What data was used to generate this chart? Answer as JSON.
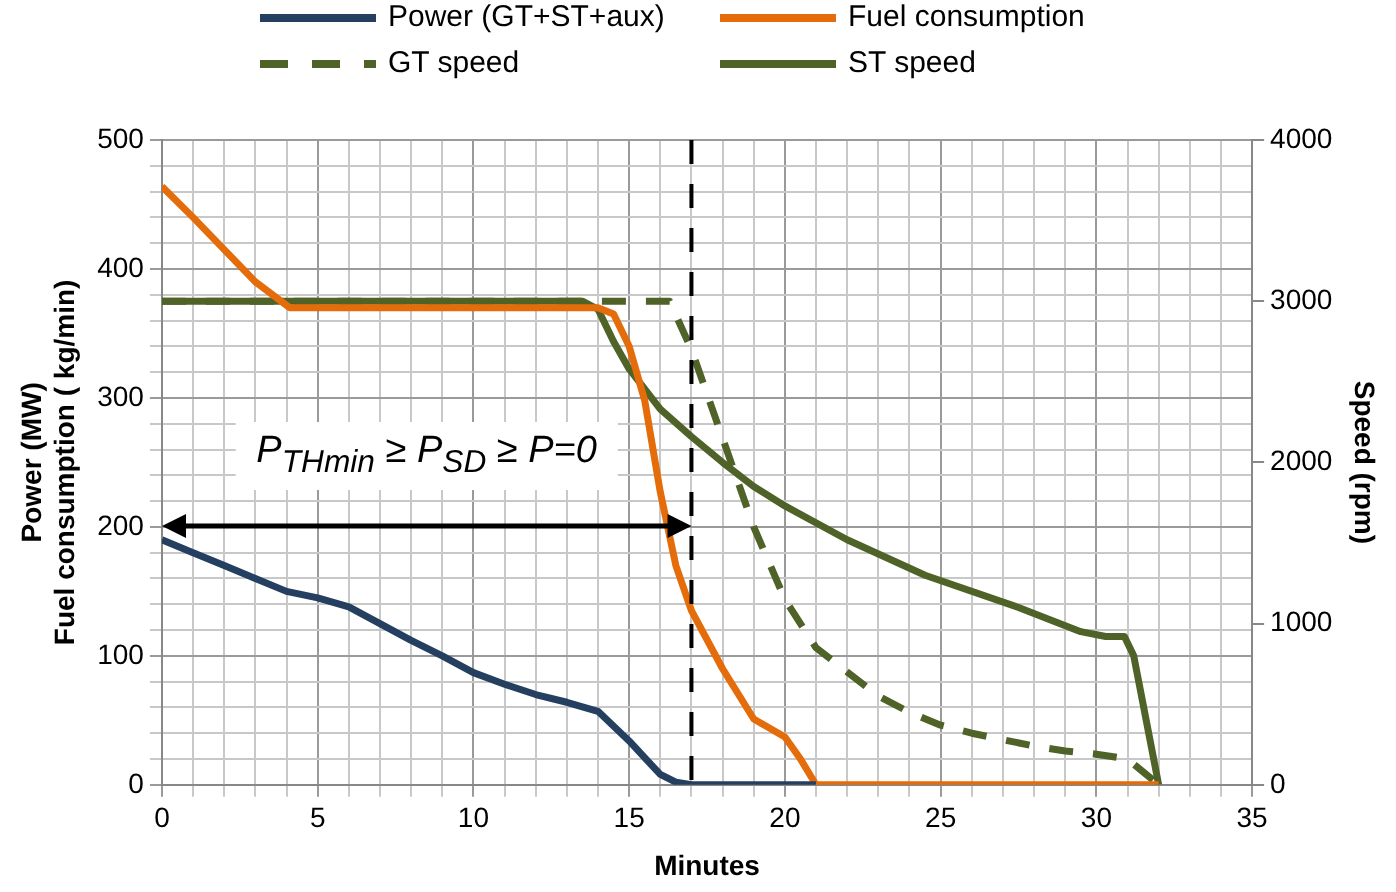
{
  "chart_data": {
    "type": "line",
    "xlabel": "Minutes",
    "ylabel": "Power (MW)\nFuel consumption ( kg/min)",
    "y2label": "Speed (rpm)",
    "xlim": [
      0,
      35
    ],
    "ylim": [
      0,
      500
    ],
    "y2lim": [
      0,
      4000
    ],
    "xticks": [
      0,
      {
        "value": 1,
        "label": null
      },
      {
        "value": 2,
        "label": null
      },
      {
        "value": 3,
        "label": null
      },
      {
        "value": 4,
        "label": null
      },
      5,
      {
        "value": 6,
        "label": null
      },
      {
        "value": 7,
        "label": null
      },
      {
        "value": 8,
        "label": null
      },
      {
        "value": 9,
        "label": null
      },
      10,
      {
        "value": 11,
        "label": null
      },
      {
        "value": 12,
        "label": null
      },
      {
        "value": 13,
        "label": null
      },
      {
        "value": 14,
        "label": null
      },
      15,
      {
        "value": 16,
        "label": null
      },
      {
        "value": 17,
        "label": null
      },
      {
        "value": 18,
        "label": null
      },
      {
        "value": 19,
        "label": null
      },
      20,
      {
        "value": 21,
        "label": null
      },
      {
        "value": 22,
        "label": null
      },
      {
        "value": 23,
        "label": null
      },
      {
        "value": 24,
        "label": null
      },
      25,
      {
        "value": 26,
        "label": null
      },
      {
        "value": 27,
        "label": null
      },
      {
        "value": 28,
        "label": null
      },
      {
        "value": 29,
        "label": null
      },
      30,
      {
        "value": 31,
        "label": null
      },
      {
        "value": 32,
        "label": null
      },
      {
        "value": 33,
        "label": null
      },
      {
        "value": 34,
        "label": null
      },
      35
    ],
    "yticks": [
      0,
      {
        "value": 20,
        "label": null
      },
      {
        "value": 40,
        "label": null
      },
      {
        "value": 60,
        "label": null
      },
      {
        "value": 80,
        "label": null
      },
      100,
      {
        "value": 120,
        "label": null
      },
      {
        "value": 140,
        "label": null
      },
      {
        "value": 160,
        "label": null
      },
      {
        "value": 180,
        "label": null
      },
      200,
      {
        "value": 220,
        "label": null
      },
      {
        "value": 240,
        "label": null
      },
      {
        "value": 260,
        "label": null
      },
      {
        "value": 280,
        "label": null
      },
      300,
      {
        "value": 320,
        "label": null
      },
      {
        "value": 340,
        "label": null
      },
      {
        "value": 360,
        "label": null
      },
      {
        "value": 380,
        "label": null
      },
      400,
      {
        "value": 420,
        "label": null
      },
      {
        "value": 440,
        "label": null
      },
      {
        "value": 460,
        "label": null
      },
      {
        "value": 480,
        "label": null
      },
      500
    ],
    "y2ticks": [
      0,
      1000,
      2000,
      3000,
      4000
    ],
    "grid": true,
    "legend": "top",
    "marker": "none",
    "ref_lines": [
      {
        "axis": "x",
        "value": 17,
        "color": "#000000",
        "line_style": "dashed"
      }
    ],
    "annotations": [
      "P$_{THmin}$ ≥ P$_{SD}$ ≥ P=0"
    ],
    "series": [
      {
        "name": "Power (GT+ST+aux)",
        "color": "#243f60",
        "x": [
          0,
          1,
          2,
          3,
          4,
          5,
          6,
          7,
          8,
          9,
          10,
          11,
          12,
          13,
          14,
          15,
          16,
          16.5,
          17,
          21
        ],
        "values": [
          190,
          180,
          170,
          160,
          150,
          145,
          138,
          125,
          112,
          100,
          87,
          78,
          70,
          64,
          57,
          34,
          8,
          2,
          0,
          0
        ]
      },
      {
        "name": "Fuel consumption",
        "color": "#e46c0a",
        "x": [
          0,
          1,
          2,
          3,
          4.1,
          5,
          10,
          14,
          14.5,
          15,
          15.5,
          16,
          16.5,
          17,
          18,
          19,
          20,
          20.5,
          21,
          32
        ],
        "values": [
          464,
          440,
          415,
          390,
          370,
          370,
          370,
          370,
          365,
          340,
          298,
          227,
          170,
          135,
          90,
          51,
          37,
          20,
          0,
          0
        ]
      },
      {
        "name": "GT speed",
        "color": "#4f6228",
        "axis": "y2",
        "line_style": "dashed",
        "x": [
          0,
          15,
          16.3,
          17,
          18,
          19,
          20,
          21,
          22,
          23,
          24,
          25,
          26,
          27,
          28,
          29,
          30,
          31,
          32
        ],
        "values": [
          3000,
          3000,
          3000,
          2700,
          2150,
          1600,
          1150,
          850,
          700,
          550,
          450,
          370,
          320,
          280,
          240,
          210,
          190,
          160,
          0
        ]
      },
      {
        "name": "ST speed",
        "color": "#4f6228",
        "axis": "y2",
        "x": [
          0,
          13.5,
          14,
          14.5,
          15,
          16,
          17,
          18,
          19,
          20,
          22,
          24.5,
          27.5,
          29.5,
          30.3,
          30.9,
          31.2,
          32
        ],
        "values": [
          3000,
          3000,
          2950,
          2750,
          2580,
          2330,
          2160,
          2000,
          1850,
          1730,
          1520,
          1300,
          1100,
          950,
          920,
          920,
          800,
          0
        ]
      }
    ]
  }
}
